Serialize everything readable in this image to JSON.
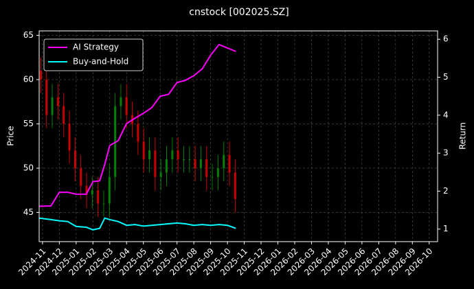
{
  "chart_data": {
    "type": "candlestick_returns",
    "title": "cnstock [002025.SZ]",
    "y_label": "Price",
    "y2_label": "Return",
    "xlim": [
      -0.2,
      23.5
    ],
    "xticks": [
      {
        "value": 0,
        "label": "2024-11"
      },
      {
        "value": 1,
        "label": "2024-12"
      },
      {
        "value": 2,
        "label": "2025-01"
      },
      {
        "value": 3,
        "label": "2025-02"
      },
      {
        "value": 4,
        "label": "2025-03"
      },
      {
        "value": 5,
        "label": "2025-04"
      },
      {
        "value": 6,
        "label": "2025-05"
      },
      {
        "value": 7,
        "label": "2025-06"
      },
      {
        "value": 8,
        "label": "2025-07"
      },
      {
        "value": 9,
        "label": "2025-08"
      },
      {
        "value": 10,
        "label": "2025-09"
      },
      {
        "value": 11,
        "label": "2025-10"
      },
      {
        "value": 12,
        "label": "2025-11"
      },
      {
        "value": 13,
        "label": "2025-12"
      },
      {
        "value": 14,
        "label": "2026-01"
      },
      {
        "value": 15,
        "label": "2026-02"
      },
      {
        "value": 16,
        "label": "2026-03"
      },
      {
        "value": 17,
        "label": "2026-04"
      },
      {
        "value": 18,
        "label": "2026-05"
      },
      {
        "value": 19,
        "label": "2026-06"
      },
      {
        "value": 20,
        "label": "2026-07"
      },
      {
        "value": 21,
        "label": "2026-08"
      },
      {
        "value": 22,
        "label": "2026-09"
      },
      {
        "value": 23,
        "label": "2026-10"
      }
    ],
    "ylim": [
      41.7,
      65.5
    ],
    "yticks": [
      45,
      50,
      55,
      60,
      65
    ],
    "y2lim": [
      0.67,
      6.22
    ],
    "y2ticks": [
      1,
      2,
      3,
      4,
      5,
      6
    ],
    "grid": true,
    "legend": "upper-left",
    "candles": {
      "up_color": "#008000",
      "down_color": "#cc0000",
      "x": [
        -0.1,
        0.24,
        0.58,
        0.92,
        1.26,
        1.6,
        1.94,
        2.28,
        2.62,
        2.96,
        3.3,
        3.64,
        3.98,
        4.32,
        4.66,
        5,
        5.34,
        5.68,
        6.02,
        6.36,
        6.7,
        7.04,
        7.38,
        7.72,
        8.06,
        8.4,
        8.74,
        9.08,
        9.42,
        9.76,
        10.1,
        10.44,
        10.78,
        11.12,
        11.46
      ],
      "open": [
        61,
        60,
        56,
        58,
        57,
        55,
        52,
        50,
        48,
        47,
        47.5,
        46,
        46,
        49,
        57,
        58,
        56,
        55,
        53,
        51,
        52,
        49,
        49.5,
        51,
        52,
        51,
        51,
        51,
        50,
        51,
        49,
        49,
        50,
        51.5,
        49.5
      ],
      "high": [
        62.5,
        61.5,
        59.5,
        59.5,
        58.5,
        56.5,
        53.5,
        51.5,
        49.5,
        49,
        49,
        47.5,
        50.5,
        58.5,
        59.5,
        59.5,
        57.5,
        56.5,
        54.5,
        53.5,
        53.5,
        51,
        52.5,
        53.5,
        53.5,
        52.5,
        52.5,
        52.5,
        52.5,
        52.5,
        50.5,
        51.5,
        53,
        53,
        51
      ],
      "low": [
        58.5,
        54.5,
        54.5,
        55.5,
        53.5,
        50.5,
        48.5,
        46.5,
        45.5,
        45.5,
        44.5,
        44.5,
        44.5,
        47.5,
        55.5,
        54.5,
        53.5,
        51.5,
        49.5,
        49.5,
        47.5,
        47.5,
        48,
        49.5,
        49.5,
        49.5,
        49.5,
        48.5,
        48.5,
        47.5,
        47.5,
        47.5,
        48.5,
        48,
        45
      ],
      "close": [
        60,
        56,
        58,
        57,
        55,
        52,
        50,
        48,
        47,
        47.5,
        46,
        46,
        49,
        57,
        58,
        56,
        55,
        53,
        51,
        52,
        49,
        49.5,
        51,
        52,
        51,
        51,
        51,
        50,
        51,
        49,
        49,
        50,
        51.5,
        49.5,
        46.5
      ]
    },
    "x": [
      -0.2,
      0.5,
      1,
      1.5,
      2,
      2.6,
      3,
      3.4,
      3.7,
      4,
      4.5,
      5,
      5.5,
      6,
      6.5,
      7,
      7.5,
      8,
      8.5,
      9,
      9.5,
      10,
      10.5,
      11,
      11.5
    ],
    "series": [
      {
        "name": "AI Strategy",
        "color": "#ff00ff",
        "axis": "y2",
        "values": [
          1.6,
          1.61,
          1.97,
          1.97,
          1.92,
          1.92,
          2.25,
          2.27,
          2.7,
          3.2,
          3.33,
          3.78,
          3.92,
          4.05,
          4.2,
          4.5,
          4.55,
          4.86,
          4.92,
          5.04,
          5.22,
          5.58,
          5.86,
          5.77,
          5.68
        ]
      },
      {
        "name": "Buy-and-Hold",
        "color": "#00ffff",
        "axis": "y2",
        "values": [
          1.29,
          1.25,
          1.22,
          1.2,
          1.07,
          1.05,
          0.98,
          1.02,
          1.29,
          1.25,
          1.2,
          1.1,
          1.12,
          1.08,
          1.1,
          1.12,
          1.14,
          1.16,
          1.14,
          1.1,
          1.12,
          1.1,
          1.12,
          1.1,
          1.02
        ]
      }
    ]
  }
}
